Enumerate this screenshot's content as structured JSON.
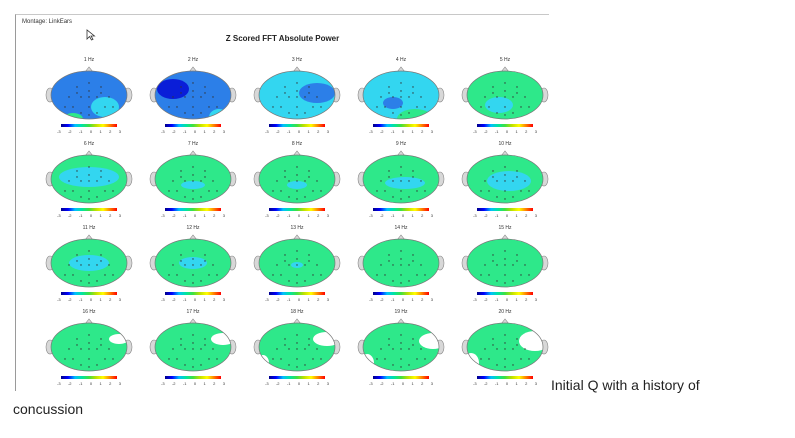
{
  "figure": {
    "montage_label": "Montage: LinkEars",
    "title": "Z Scored FFT Absolute Power",
    "scale_ticks": [
      "-3",
      "-2",
      "-1",
      "0",
      "1",
      "2",
      "3"
    ],
    "colors": {
      "deep_blue": "#0a1ed8",
      "mid_blue": "#2c7fe8",
      "light_blue": "#33d6f0",
      "green": "#2ee88a",
      "white": "#ffffff"
    },
    "maps": [
      {
        "label": "1 Hz",
        "base": "mid_blue",
        "patches": [
          [
            "light_blue",
            62,
            44,
            14,
            10
          ],
          [
            "green",
            30,
            56,
            10,
            6
          ]
        ]
      },
      {
        "label": "2 Hz",
        "base": "mid_blue",
        "patches": [
          [
            "deep_blue",
            26,
            26,
            16,
            10
          ],
          [
            "light_blue",
            72,
            54,
            10,
            8
          ]
        ]
      },
      {
        "label": "3 Hz",
        "base": "light_blue",
        "patches": [
          [
            "mid_blue",
            66,
            30,
            18,
            10
          ],
          [
            "green",
            26,
            60,
            10,
            6
          ]
        ]
      },
      {
        "label": "4 Hz",
        "base": "light_blue",
        "patches": [
          [
            "mid_blue",
            38,
            40,
            10,
            6
          ],
          [
            "green",
            60,
            56,
            18,
            10
          ]
        ]
      },
      {
        "label": "5 Hz",
        "base": "green",
        "patches": [
          [
            "light_blue",
            40,
            42,
            14,
            8
          ]
        ]
      },
      {
        "label": "6 Hz",
        "base": "green",
        "patches": [
          [
            "light_blue",
            46,
            30,
            30,
            10
          ]
        ]
      },
      {
        "label": "7 Hz",
        "base": "green",
        "patches": [
          [
            "light_blue",
            46,
            38,
            12,
            4
          ]
        ]
      },
      {
        "label": "8 Hz",
        "base": "green",
        "patches": [
          [
            "light_blue",
            46,
            38,
            10,
            4
          ]
        ]
      },
      {
        "label": "9 Hz",
        "base": "green",
        "patches": [
          [
            "light_blue",
            50,
            36,
            20,
            6
          ]
        ]
      },
      {
        "label": "10 Hz",
        "base": "green",
        "patches": [
          [
            "light_blue",
            50,
            34,
            22,
            10
          ]
        ]
      },
      {
        "label": "11 Hz",
        "base": "green",
        "patches": [
          [
            "light_blue",
            46,
            32,
            20,
            8
          ]
        ]
      },
      {
        "label": "12 Hz",
        "base": "green",
        "patches": [
          [
            "light_blue",
            46,
            32,
            14,
            6
          ]
        ]
      },
      {
        "label": "13 Hz",
        "base": "green",
        "patches": [
          [
            "light_blue",
            46,
            34,
            6,
            3
          ]
        ]
      },
      {
        "label": "14 Hz",
        "base": "green",
        "patches": []
      },
      {
        "label": "15 Hz",
        "base": "green",
        "patches": []
      },
      {
        "label": "16 Hz",
        "base": "green",
        "patches": [
          [
            "white",
            76,
            24,
            10,
            5
          ]
        ]
      },
      {
        "label": "17 Hz",
        "base": "green",
        "patches": [
          [
            "white",
            76,
            24,
            12,
            6
          ],
          [
            "white",
            10,
            48,
            4,
            6
          ]
        ]
      },
      {
        "label": "18 Hz",
        "base": "green",
        "patches": [
          [
            "white",
            76,
            24,
            14,
            7
          ],
          [
            "white",
            12,
            48,
            6,
            8
          ]
        ]
      },
      {
        "label": "19 Hz",
        "base": "green",
        "patches": [
          [
            "white",
            78,
            26,
            14,
            8
          ],
          [
            "white",
            12,
            48,
            7,
            9
          ]
        ]
      },
      {
        "label": "20 Hz",
        "base": "green",
        "patches": [
          [
            "white",
            76,
            26,
            16,
            10
          ],
          [
            "white",
            12,
            48,
            8,
            10
          ]
        ]
      }
    ]
  },
  "caption": {
    "line1": "Initial Q with a history of",
    "line2": "concussion"
  }
}
